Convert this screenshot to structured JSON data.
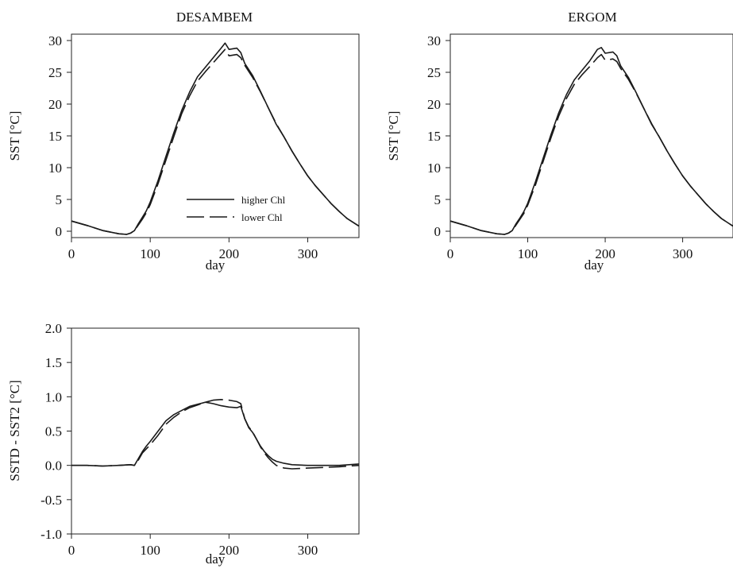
{
  "legend": {
    "items": [
      "higher Chl",
      "lower Chl"
    ]
  },
  "chart_data": [
    {
      "type": "line",
      "title": "DESAMBEM",
      "xlabel": "day",
      "ylabel": "SST [°C]",
      "xlim": [
        0,
        365
      ],
      "ylim": [
        -1,
        31
      ],
      "xticks": [
        "0",
        "100",
        "200",
        "300"
      ],
      "yticks": [
        "0",
        "5",
        "10",
        "15",
        "20",
        "25",
        "30"
      ],
      "legend_position": "bottom-center",
      "series": [
        {
          "name": "higher Chl",
          "style": "solid",
          "x": [
            0,
            20,
            40,
            60,
            70,
            75,
            80,
            85,
            90,
            95,
            100,
            110,
            120,
            130,
            140,
            150,
            160,
            170,
            180,
            190,
            195,
            200,
            210,
            215,
            220,
            230,
            240,
            250,
            260,
            270,
            280,
            290,
            300,
            310,
            320,
            330,
            340,
            350,
            365
          ],
          "y": [
            1.6,
            0.9,
            0.1,
            -0.4,
            -0.5,
            -0.3,
            0.1,
            1.2,
            2.2,
            3.2,
            4.6,
            8.0,
            11.8,
            15.5,
            19.0,
            21.9,
            24.3,
            25.8,
            27.3,
            28.8,
            29.6,
            28.6,
            28.8,
            28.1,
            26.4,
            24.5,
            22.0,
            19.4,
            16.8,
            14.8,
            12.6,
            10.6,
            8.7,
            7.1,
            5.7,
            4.3,
            3.1,
            2.0,
            0.8
          ]
        },
        {
          "name": "lower Chl",
          "style": "dashed",
          "x": [
            0,
            20,
            40,
            60,
            70,
            75,
            80,
            85,
            90,
            95,
            100,
            110,
            120,
            130,
            140,
            150,
            160,
            170,
            180,
            190,
            195,
            200,
            210,
            215,
            220,
            230,
            240,
            250,
            260,
            270,
            280,
            290,
            300,
            310,
            320,
            330,
            340,
            350,
            365
          ],
          "y": [
            1.6,
            0.9,
            0.1,
            -0.4,
            -0.5,
            -0.3,
            0.1,
            1.0,
            1.9,
            2.9,
            4.2,
            7.5,
            11.2,
            14.9,
            18.5,
            21.3,
            23.6,
            25.1,
            26.5,
            27.9,
            28.6,
            27.6,
            27.8,
            27.3,
            26.1,
            24.2,
            21.9,
            19.4,
            16.9,
            14.8,
            12.6,
            10.6,
            8.7,
            7.1,
            5.7,
            4.3,
            3.1,
            2.0,
            0.8
          ]
        }
      ]
    },
    {
      "type": "line",
      "title": "ERGOM",
      "xlabel": "day",
      "ylabel": "SST [°C]",
      "xlim": [
        0,
        365
      ],
      "ylim": [
        -1,
        31
      ],
      "xticks": [
        "0",
        "100",
        "200",
        "300"
      ],
      "yticks": [
        "0",
        "5",
        "10",
        "15",
        "20",
        "25",
        "30"
      ],
      "series": [
        {
          "name": "higher Chl",
          "style": "solid",
          "x": [
            0,
            20,
            40,
            60,
            70,
            75,
            80,
            85,
            90,
            95,
            100,
            110,
            120,
            130,
            140,
            150,
            160,
            170,
            180,
            190,
            195,
            200,
            210,
            215,
            220,
            230,
            240,
            250,
            260,
            270,
            280,
            290,
            300,
            310,
            320,
            330,
            340,
            350,
            365
          ],
          "y": [
            1.6,
            0.9,
            0.1,
            -0.4,
            -0.5,
            -0.3,
            0.1,
            1.2,
            2.1,
            3.1,
            4.4,
            7.8,
            11.5,
            15.2,
            18.6,
            21.5,
            23.8,
            25.3,
            26.8,
            28.6,
            28.9,
            28.0,
            28.2,
            27.6,
            26.0,
            24.2,
            21.8,
            19.3,
            16.8,
            14.8,
            12.6,
            10.6,
            8.7,
            7.1,
            5.7,
            4.3,
            3.1,
            2.0,
            0.8
          ]
        },
        {
          "name": "lower Chl",
          "style": "dashed",
          "x": [
            0,
            20,
            40,
            60,
            70,
            75,
            80,
            85,
            90,
            95,
            100,
            110,
            120,
            130,
            140,
            150,
            160,
            170,
            180,
            190,
            195,
            200,
            210,
            215,
            220,
            230,
            240,
            250,
            260,
            270,
            280,
            290,
            300,
            310,
            320,
            330,
            340,
            350,
            365
          ],
          "y": [
            1.6,
            0.9,
            0.1,
            -0.4,
            -0.5,
            -0.3,
            0.1,
            1.0,
            1.9,
            2.8,
            4.1,
            7.3,
            11.0,
            14.7,
            18.1,
            20.9,
            23.1,
            24.6,
            25.9,
            27.3,
            27.8,
            26.9,
            27.1,
            26.7,
            25.6,
            23.9,
            21.7,
            19.3,
            16.9,
            14.8,
            12.6,
            10.6,
            8.7,
            7.1,
            5.7,
            4.3,
            3.1,
            2.0,
            0.8
          ]
        }
      ]
    },
    {
      "type": "line",
      "title": "",
      "xlabel": "day",
      "ylabel": "SSTD - SST2  [°C]",
      "xlim": [
        0,
        365
      ],
      "ylim": [
        -1.0,
        2.0
      ],
      "xticks": [
        "0",
        "100",
        "200",
        "300"
      ],
      "yticks": [
        "-1.0",
        "-0.5",
        "0.0",
        "0.5",
        "1.0",
        "1.5",
        "2.0"
      ],
      "series": [
        {
          "name": "DESAMBEM",
          "style": "solid",
          "x": [
            0,
            20,
            40,
            60,
            75,
            80,
            85,
            90,
            95,
            100,
            110,
            120,
            130,
            140,
            150,
            160,
            170,
            180,
            190,
            200,
            210,
            215,
            220,
            225,
            230,
            235,
            240,
            245,
            250,
            255,
            260,
            270,
            280,
            300,
            320,
            340,
            365
          ],
          "y": [
            0.0,
            0.0,
            -0.01,
            0.0,
            0.01,
            0.0,
            0.1,
            0.2,
            0.28,
            0.35,
            0.5,
            0.65,
            0.74,
            0.8,
            0.86,
            0.89,
            0.92,
            0.9,
            0.87,
            0.85,
            0.84,
            0.86,
            0.68,
            0.55,
            0.48,
            0.38,
            0.28,
            0.2,
            0.14,
            0.09,
            0.06,
            0.03,
            0.01,
            0.0,
            0.0,
            0.0,
            0.02
          ]
        },
        {
          "name": "ERGOM",
          "style": "dashed",
          "x": [
            0,
            20,
            40,
            60,
            75,
            80,
            85,
            90,
            95,
            100,
            110,
            120,
            130,
            140,
            150,
            160,
            170,
            180,
            190,
            200,
            210,
            215,
            220,
            225,
            230,
            235,
            240,
            245,
            250,
            255,
            260,
            270,
            280,
            300,
            320,
            340,
            365
          ],
          "y": [
            0.0,
            0.0,
            -0.01,
            0.0,
            0.01,
            0.0,
            0.08,
            0.18,
            0.24,
            0.3,
            0.44,
            0.6,
            0.7,
            0.78,
            0.84,
            0.88,
            0.92,
            0.95,
            0.96,
            0.95,
            0.93,
            0.9,
            0.68,
            0.56,
            0.49,
            0.38,
            0.27,
            0.18,
            0.11,
            0.05,
            0.0,
            -0.04,
            -0.05,
            -0.04,
            -0.03,
            -0.02,
            0.0
          ]
        }
      ]
    }
  ]
}
